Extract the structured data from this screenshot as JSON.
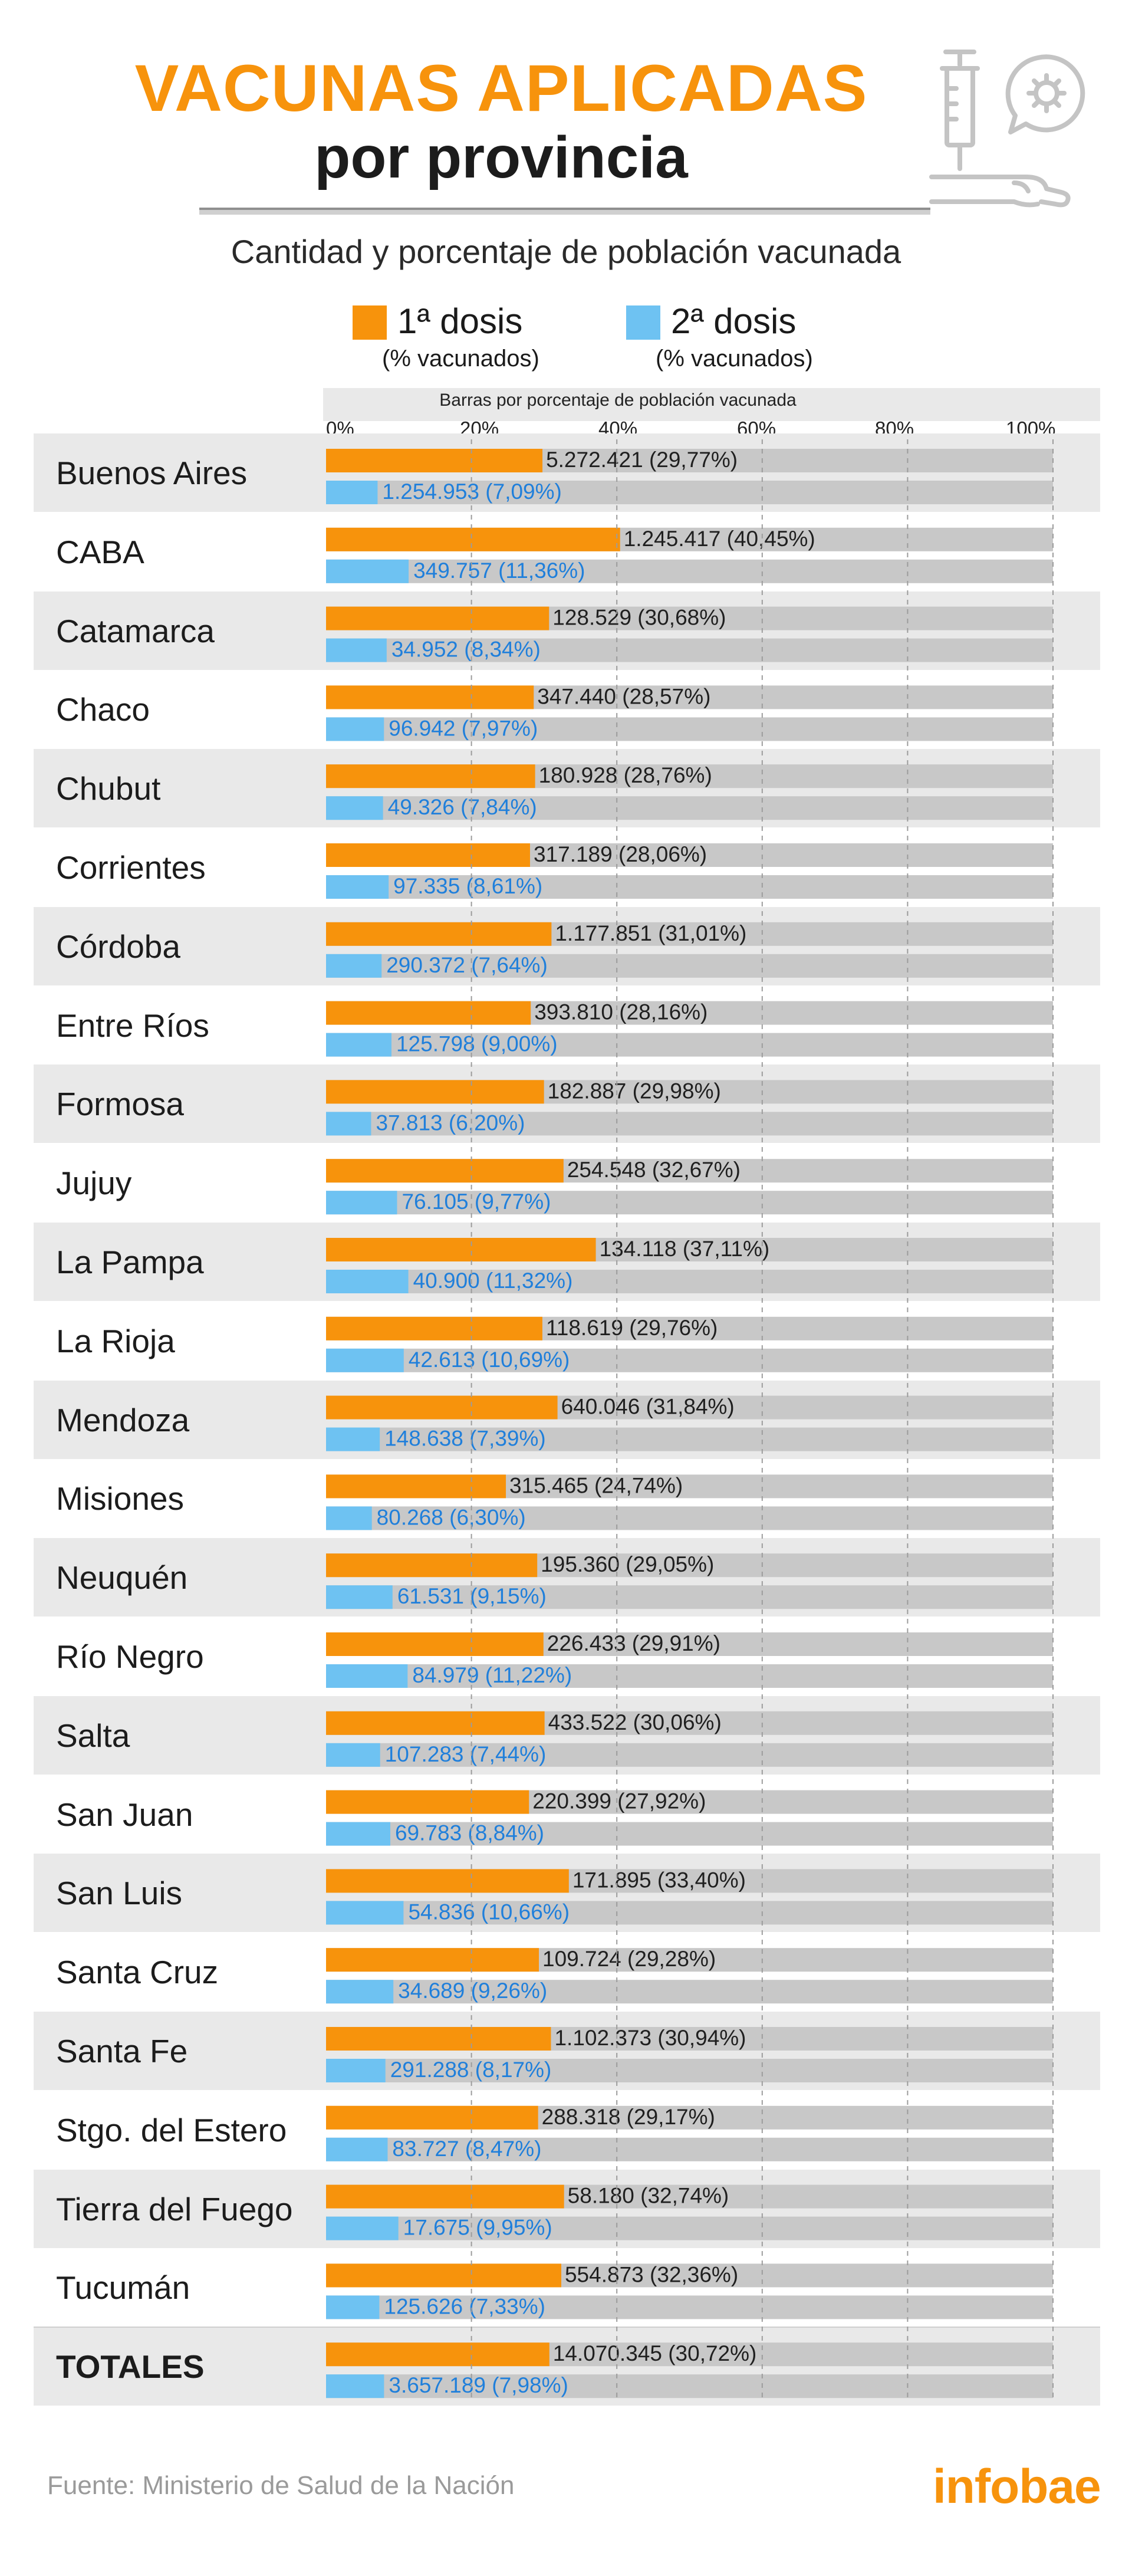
{
  "title": "VACUNAS APLICADAS",
  "title_line2": "por provincia",
  "subtitle": "Cantidad y porcentaje de población vacunada",
  "legend": [
    {
      "label": "1ª dosis",
      "sub": "(% vacunados)",
      "color": "#f7930c"
    },
    {
      "label": "2ª dosis",
      "sub": "(% vacunados)",
      "color": "#6ec2f2"
    }
  ],
  "axis_title": "Barras por porcentaje de población vacunada",
  "source": "Fuente: Ministerio de Salud de la Nación",
  "brand": "infobae",
  "colors": {
    "dose1": "#f7930c",
    "dose2": "#6ec2f2",
    "track": "#c8c8c8",
    "dose2_text": "#1f7fdb"
  },
  "chart_data": {
    "type": "bar",
    "orientation": "horizontal",
    "xlim": [
      0,
      100
    ],
    "xticks": [
      "0%",
      "20%",
      "40%",
      "60%",
      "80%",
      "100%"
    ],
    "grid": true,
    "categories": [
      "Buenos Aires",
      "CABA",
      "Catamarca",
      "Chaco",
      "Chubut",
      "Corrientes",
      "Córdoba",
      "Entre Ríos",
      "Formosa",
      "Jujuy",
      "La Pampa",
      "La Rioja",
      "Mendoza",
      "Misiones",
      "Neuquén",
      "Río Negro",
      "Salta",
      "San Juan",
      "San Luis",
      "Santa Cruz",
      "Santa Fe",
      "Stgo. del Estero",
      "Tierra del Fuego",
      "Tucumán",
      "TOTALES"
    ],
    "series": [
      {
        "name": "1ª dosis",
        "values": [
          29.77,
          40.45,
          30.68,
          28.57,
          28.76,
          28.06,
          31.01,
          28.16,
          29.98,
          32.67,
          37.11,
          29.76,
          31.84,
          24.74,
          29.05,
          29.91,
          30.06,
          27.92,
          33.4,
          29.28,
          30.94,
          29.17,
          32.74,
          32.36,
          30.72
        ],
        "counts": [
          "5.272.421",
          "1.245.417",
          "128.529",
          "347.440",
          "180.928",
          "317.189",
          "1.177.851",
          "393.810",
          "182.887",
          "254.548",
          "134.118",
          "118.619",
          "640.046",
          "315.465",
          "195.360",
          "226.433",
          "433.522",
          "220.399",
          "171.895",
          "109.724",
          "1.102.373",
          "288.318",
          "58.180",
          "554.873",
          "14.070.345"
        ],
        "pct_labels": [
          "(29,77%)",
          "(40,45%)",
          "(30,68%)",
          "(28,57%)",
          "(28,76%)",
          "(28,06%)",
          "(31,01%)",
          "(28,16%)",
          "(29,98%)",
          "(32,67%)",
          "(37,11%)",
          "(29,76%)",
          "(31,84%)",
          "(24,74%)",
          "(29,05%)",
          "(29,91%)",
          "(30,06%)",
          "(27,92%)",
          "(33,40%)",
          "(29,28%)",
          "(30,94%)",
          "(29,17%)",
          "(32,74%)",
          "(32,36%)",
          "(30,72%)"
        ]
      },
      {
        "name": "2ª dosis",
        "values": [
          7.09,
          11.36,
          8.34,
          7.97,
          7.84,
          8.61,
          7.64,
          9.0,
          6.2,
          9.77,
          11.32,
          10.69,
          7.39,
          6.3,
          9.15,
          11.22,
          7.44,
          8.84,
          10.66,
          9.26,
          8.17,
          8.47,
          9.95,
          7.33,
          7.98
        ],
        "counts": [
          "1.254.953",
          "349.757",
          "34.952",
          "96.942",
          "49.326",
          "97.335",
          "290.372",
          "125.798",
          "37.813",
          "76.105",
          "40.900",
          "42.613",
          "148.638",
          "80.268",
          "61.531",
          "84.979",
          "107.283",
          "69.783",
          "54.836",
          "34.689",
          "291.288",
          "83.727",
          "17.675",
          "125.626",
          "3.657.189"
        ],
        "pct_labels": [
          "(7,09%)",
          "(11,36%)",
          "(8,34%)",
          "(7,97%)",
          "(7,84%)",
          "(8,61%)",
          "(7,64%)",
          "(9,00%)",
          "(6,20%)",
          "(9,77%)",
          "(11,32%)",
          "(10,69%)",
          "(7,39%)",
          "(6,30%)",
          "(9,15%)",
          "(11,22%)",
          "(7,44%)",
          "(8,84%)",
          "(10,66%)",
          "(9,26%)",
          "(8,17%)",
          "(8,47%)",
          "(9,95%)",
          "(7,33%)",
          "(7,98%)"
        ]
      }
    ]
  }
}
